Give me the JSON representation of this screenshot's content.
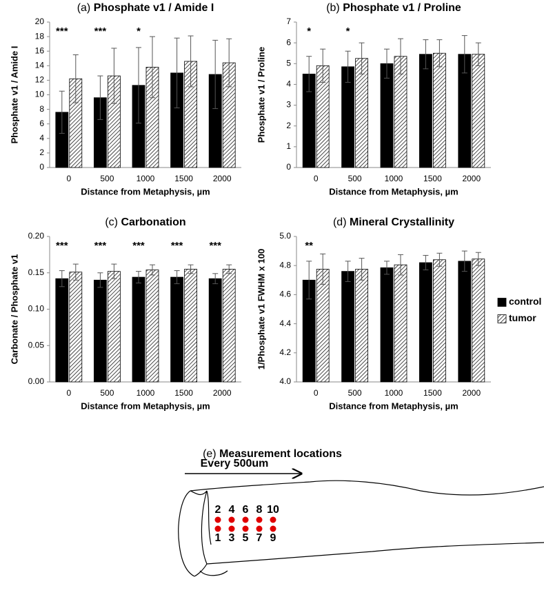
{
  "chart_data": [
    {
      "type": "bar",
      "panel": "(a)",
      "title": "Phosphate v1 / Amide I",
      "x_label": "Distance from Metaphysis, µm",
      "y_label": "Phosphate v1 / Amide I",
      "categories": [
        "0",
        "500",
        "1000",
        "1500",
        "2000"
      ],
      "series": [
        {
          "name": "control",
          "color": "#000000",
          "values": [
            7.6,
            9.6,
            11.3,
            13.0,
            12.8
          ],
          "errors": [
            2.9,
            3.0,
            5.2,
            4.8,
            4.7
          ]
        },
        {
          "name": "tumor",
          "color": "#ffffff",
          "hatch": true,
          "values": [
            12.2,
            12.6,
            13.8,
            14.6,
            14.4
          ],
          "errors": [
            3.3,
            3.8,
            4.2,
            3.5,
            3.3
          ]
        }
      ],
      "significance": [
        "***",
        "***",
        "*",
        null,
        null
      ],
      "ylim": [
        0,
        20
      ],
      "yticks": [
        0,
        2,
        4,
        6,
        8,
        10,
        12,
        14,
        16,
        18,
        20
      ]
    },
    {
      "type": "bar",
      "panel": "(b)",
      "title": "Phosphate v1 / Proline",
      "x_label": "Distance from Metaphysis, µm",
      "y_label": "Phosphate v1 / Proline",
      "categories": [
        "0",
        "500",
        "1000",
        "1500",
        "2000"
      ],
      "series": [
        {
          "name": "control",
          "color": "#000000",
          "values": [
            4.5,
            4.85,
            5.0,
            5.45,
            5.45
          ],
          "errors": [
            0.85,
            0.75,
            0.7,
            0.7,
            0.9
          ]
        },
        {
          "name": "tumor",
          "color": "#ffffff",
          "hatch": true,
          "values": [
            4.9,
            5.25,
            5.35,
            5.5,
            5.45
          ],
          "errors": [
            0.8,
            0.75,
            0.85,
            0.65,
            0.55
          ]
        }
      ],
      "significance": [
        "*",
        "*",
        null,
        null,
        null
      ],
      "ylim": [
        0,
        7
      ],
      "yticks": [
        0,
        1,
        2,
        3,
        4,
        5,
        6,
        7
      ]
    },
    {
      "type": "bar",
      "panel": "(c)",
      "title": "Carbonation",
      "x_label": "Distance from Metaphysis, µm",
      "y_label": "Carbonate / Phosphate v1",
      "categories": [
        "0",
        "500",
        "1000",
        "1500",
        "2000"
      ],
      "series": [
        {
          "name": "control",
          "color": "#000000",
          "values": [
            0.142,
            0.14,
            0.144,
            0.144,
            0.142
          ],
          "errors": [
            0.011,
            0.01,
            0.008,
            0.009,
            0.007
          ]
        },
        {
          "name": "tumor",
          "color": "#ffffff",
          "hatch": true,
          "values": [
            0.151,
            0.152,
            0.154,
            0.155,
            0.155
          ],
          "errors": [
            0.011,
            0.01,
            0.007,
            0.006,
            0.006
          ]
        }
      ],
      "significance": [
        "***",
        "***",
        "***",
        "***",
        "***"
      ],
      "ylim": [
        0,
        0.2
      ],
      "yticks": [
        {
          "value": 0,
          "label": "0.00"
        },
        {
          "value": 0.05,
          "label": "0.05"
        },
        {
          "value": 0.1,
          "label": "0.10"
        },
        {
          "value": 0.15,
          "label": "0.15"
        },
        {
          "value": 0.2,
          "label": "0.20"
        }
      ]
    },
    {
      "type": "bar",
      "panel": "(d)",
      "title": "Mineral Crystallinity",
      "x_label": "Distance from Metaphysis, µm",
      "y_label": "1/Phosphate v1 FWHM x 100",
      "categories": [
        "0",
        "500",
        "1000",
        "1500",
        "2000"
      ],
      "series": [
        {
          "name": "control",
          "color": "#000000",
          "values": [
            4.7,
            4.76,
            4.785,
            4.82,
            4.83
          ],
          "errors": [
            0.13,
            0.07,
            0.045,
            0.05,
            0.07
          ]
        },
        {
          "name": "tumor",
          "color": "#ffffff",
          "hatch": true,
          "values": [
            4.775,
            4.775,
            4.805,
            4.84,
            4.845
          ],
          "errors": [
            0.105,
            0.075,
            0.07,
            0.045,
            0.045
          ]
        }
      ],
      "significance": [
        "**",
        null,
        null,
        null,
        null
      ],
      "legend": "right",
      "ylim": [
        4,
        5
      ],
      "yticks": [
        {
          "value": 4,
          "label": "4.0"
        },
        4.2,
        4.4,
        4.6,
        4.8,
        {
          "value": 5,
          "label": "5.0"
        }
      ]
    }
  ],
  "diagram": {
    "panel": "(e)",
    "title": "Measurement locations",
    "arrow_label": "Every 500um",
    "top_labels": [
      "2",
      "4",
      "6",
      "8",
      "10"
    ],
    "bottom_labels": [
      "1",
      "3",
      "5",
      "7",
      "9"
    ]
  }
}
